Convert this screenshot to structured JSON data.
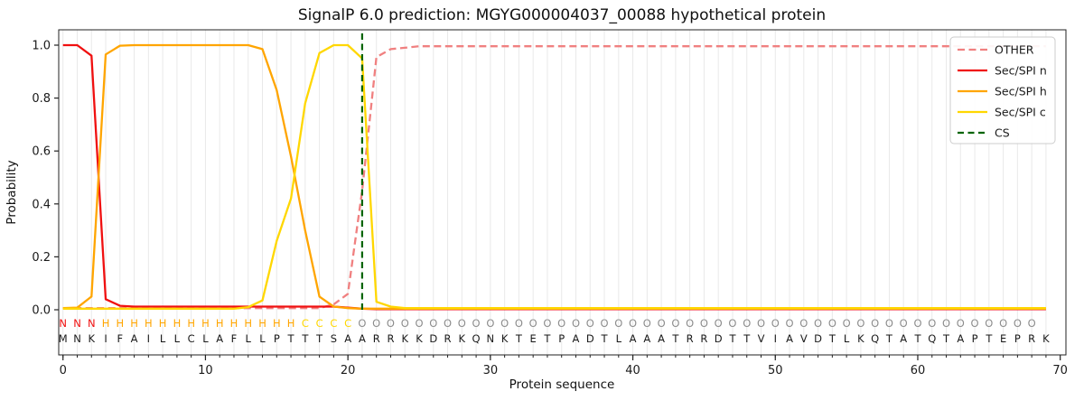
{
  "figure": {
    "title": "SignalP 6.0 prediction: MGYG000004037_00088 hypothetical protein",
    "xlabel": "Protein sequence",
    "ylabel": "Probability"
  },
  "chart_data": {
    "type": "line",
    "title": "SignalP 6.0 prediction: MGYG000004037_00088 hypothetical protein",
    "xlabel": "Protein sequence",
    "ylabel": "Probability",
    "xlim": [
      -0.3,
      70.4
    ],
    "ylim": [
      -0.17,
      1.06
    ],
    "xticks": [
      0,
      10,
      20,
      30,
      40,
      50,
      60,
      70
    ],
    "yticks": [
      "0.0",
      "0.2",
      "0.4",
      "0.6",
      "0.8",
      "1.0"
    ],
    "grid": {
      "vertical_per_residue": true,
      "color": "#e9e9e9",
      "horizontal": false
    },
    "legend_position": "upper right",
    "sequence": "MNKIFAILLCLAFLLPTTTSAARRKKDRKQNKTETPADTLAAATRRDTTVIAVDTLKQTATQTAPTEPRK",
    "region_labels": "NNNHHHHHHHHHHHHHHCCCCOOOOOOOOOOOOOOOOOOOOOOOOOOOOOOOOOOOOOOOOOOOOOOOO",
    "label_colors": {
      "N": "#f01010",
      "H": "#ffa500",
      "C": "#ffd700",
      "O": "#8c8c8c"
    },
    "sequence_color": "#1a1a1a",
    "cs_position": 21,
    "cs_line": {
      "name": "CS",
      "color": "#006400",
      "dash": "7 4.5"
    },
    "series": [
      {
        "name": "OTHER",
        "color": "#f08080",
        "dash": "8 4.5",
        "values": [
          0.006,
          0.006,
          0.006,
          0.006,
          0.006,
          0.006,
          0.006,
          0.006,
          0.006,
          0.006,
          0.006,
          0.006,
          0.006,
          0.006,
          0.006,
          0.006,
          0.006,
          0.006,
          0.006,
          0.02,
          0.06,
          0.45,
          0.955,
          0.985,
          0.99,
          0.996,
          0.996,
          0.996,
          0.996,
          0.996,
          0.996,
          0.996,
          0.996,
          0.996,
          0.996,
          0.996,
          0.996,
          0.996,
          0.996,
          0.996,
          0.996,
          0.996,
          0.996,
          0.996,
          0.996,
          0.996,
          0.996,
          0.996,
          0.996,
          0.996,
          0.996,
          0.996,
          0.996,
          0.996,
          0.996,
          0.996,
          0.996,
          0.996,
          0.996,
          0.996,
          0.996,
          0.996,
          0.996,
          0.996,
          0.996,
          0.996,
          0.996,
          0.996,
          0.996,
          0.996
        ]
      },
      {
        "name": "Sec/SPI n",
        "color": "#f01010",
        "dash": null,
        "values": [
          1.0,
          1.0,
          0.96,
          0.04,
          0.015,
          0.012,
          0.012,
          0.012,
          0.012,
          0.012,
          0.012,
          0.012,
          0.012,
          0.012,
          0.012,
          0.012,
          0.012,
          0.012,
          0.012,
          0.012,
          0.008,
          0.004,
          0.002,
          0.002,
          0.002,
          0.002,
          0.002,
          0.002,
          0.002,
          0.002,
          0.002,
          0.002,
          0.002,
          0.002,
          0.002,
          0.002,
          0.002,
          0.002,
          0.002,
          0.002,
          0.002,
          0.002,
          0.002,
          0.002,
          0.002,
          0.002,
          0.002,
          0.002,
          0.002,
          0.002,
          0.002,
          0.002,
          0.002,
          0.002,
          0.002,
          0.002,
          0.002,
          0.002,
          0.002,
          0.002,
          0.002,
          0.002,
          0.002,
          0.002,
          0.002,
          0.002,
          0.002,
          0.002,
          0.002,
          0.002
        ]
      },
      {
        "name": "Sec/SPI h",
        "color": "#ffa500",
        "dash": null,
        "values": [
          0.006,
          0.008,
          0.05,
          0.965,
          0.998,
          1.0,
          1.0,
          1.0,
          1.0,
          1.0,
          1.0,
          1.0,
          1.0,
          1.0,
          0.985,
          0.83,
          0.58,
          0.3,
          0.05,
          0.012,
          0.006,
          0.004,
          0.004,
          0.004,
          0.004,
          0.004,
          0.004,
          0.004,
          0.004,
          0.004,
          0.004,
          0.004,
          0.004,
          0.004,
          0.004,
          0.004,
          0.004,
          0.004,
          0.004,
          0.004,
          0.004,
          0.004,
          0.004,
          0.004,
          0.004,
          0.004,
          0.004,
          0.004,
          0.004,
          0.004,
          0.004,
          0.004,
          0.004,
          0.004,
          0.004,
          0.004,
          0.004,
          0.004,
          0.004,
          0.004,
          0.004,
          0.004,
          0.004,
          0.004,
          0.004,
          0.004,
          0.004,
          0.004,
          0.004,
          0.004
        ]
      },
      {
        "name": "Sec/SPI c",
        "color": "#ffd700",
        "dash": null,
        "values": [
          0.004,
          0.004,
          0.004,
          0.004,
          0.004,
          0.004,
          0.004,
          0.004,
          0.004,
          0.004,
          0.004,
          0.004,
          0.004,
          0.01,
          0.035,
          0.26,
          0.42,
          0.78,
          0.97,
          1.0,
          1.0,
          0.95,
          0.03,
          0.012,
          0.006,
          0.006,
          0.006,
          0.006,
          0.006,
          0.006,
          0.006,
          0.006,
          0.006,
          0.006,
          0.006,
          0.006,
          0.006,
          0.006,
          0.006,
          0.006,
          0.006,
          0.006,
          0.006,
          0.006,
          0.006,
          0.006,
          0.006,
          0.006,
          0.006,
          0.006,
          0.006,
          0.006,
          0.006,
          0.006,
          0.006,
          0.006,
          0.006,
          0.006,
          0.006,
          0.006,
          0.006,
          0.006,
          0.006,
          0.006,
          0.006,
          0.006,
          0.006,
          0.006,
          0.006,
          0.006
        ]
      }
    ],
    "legend_entries": [
      "OTHER",
      "Sec/SPI n",
      "Sec/SPI h",
      "Sec/SPI c",
      "CS"
    ]
  }
}
